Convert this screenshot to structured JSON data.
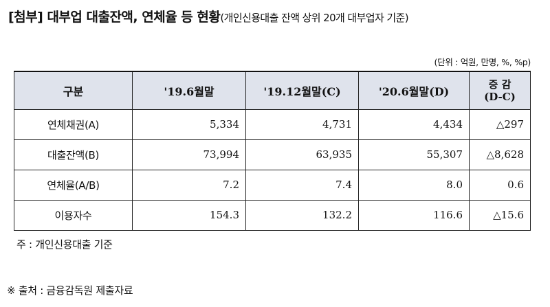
{
  "title": {
    "main": "[첨부] 대부업 대출잔액, 연체율 등 현황",
    "sub": "(개인신용대출 잔액 상위 20개 대부업자 기준)"
  },
  "unit": "(단위 : 억원, 만명, %, %p)",
  "table": {
    "headers": {
      "category": "구분",
      "col1": "'19.6월말",
      "col2": "'19.12월말(C)",
      "col3": "'20.6월말(D)",
      "change_line1": "증 감",
      "change_line2": "(D-C)"
    },
    "rows": [
      {
        "label": "연체채권(A)",
        "v1": "5,334",
        "v2": "4,731",
        "v3": "4,434",
        "change": "△297"
      },
      {
        "label": "대출잔액(B)",
        "v1": "73,994",
        "v2": "63,935",
        "v3": "55,307",
        "change": "△8,628"
      },
      {
        "label": "연체율(A/B)",
        "v1": "7.2",
        "v2": "7.4",
        "v3": "8.0",
        "change": "0.6"
      },
      {
        "label": "이용자수",
        "v1": "154.3",
        "v2": "132.2",
        "v3": "116.6",
        "change": "△15.6"
      }
    ]
  },
  "note": "주 : 개인신용대출 기준",
  "source": "※ 출처 : 금융감독원 제출자료"
}
